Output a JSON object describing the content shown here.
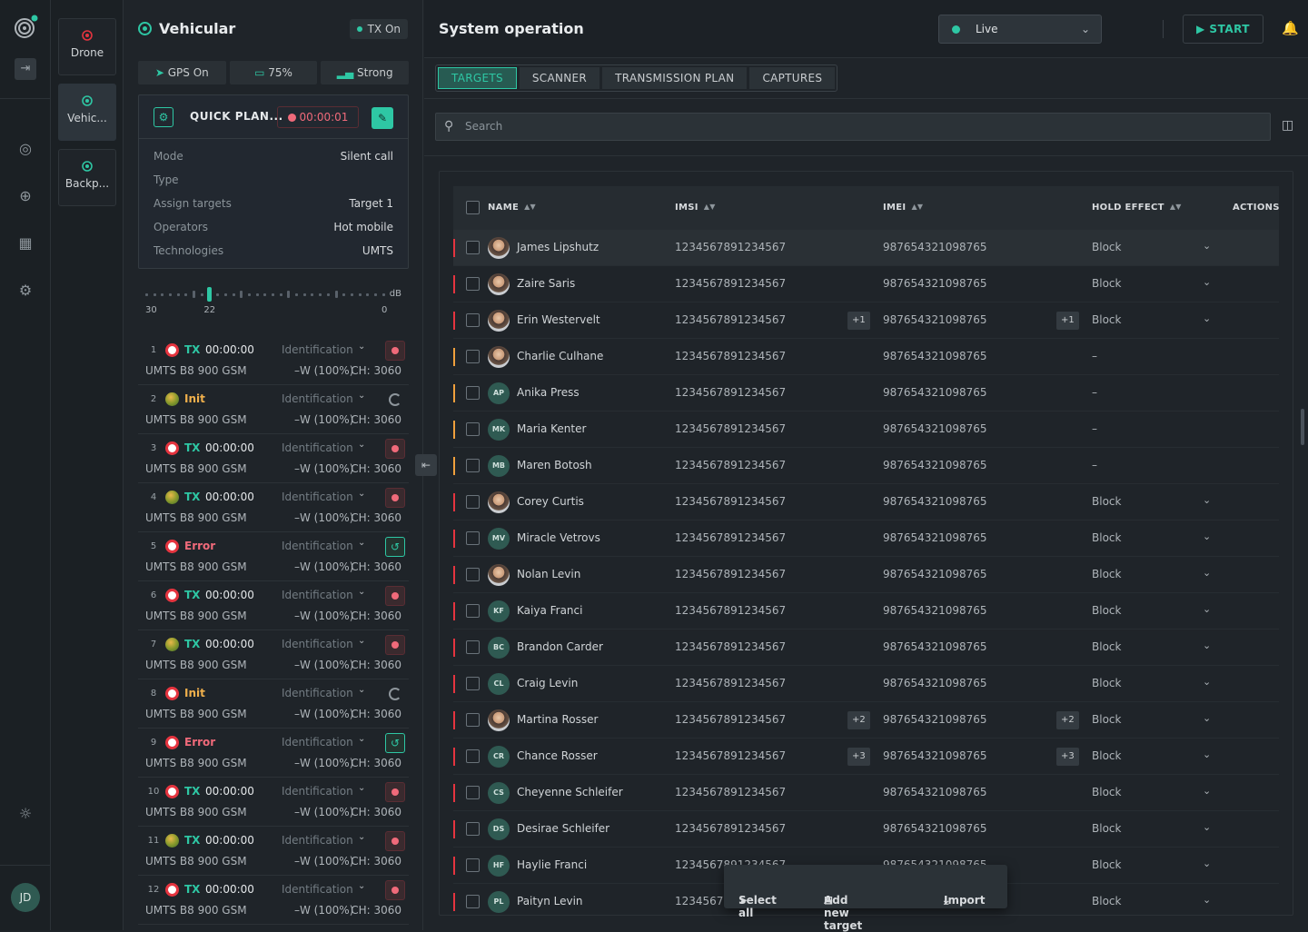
{
  "rail": {
    "avatar": "JD"
  },
  "devices": [
    {
      "label": "Drone",
      "color": "#e5343f"
    },
    {
      "label": "Vehic...",
      "color": "#2ec7a4"
    },
    {
      "label": "Backp...",
      "color": "#2ec7a4"
    }
  ],
  "panel": {
    "title": "Vehicular",
    "tx_status": "TX On",
    "gps": {
      "label": "GPS",
      "value": "On"
    },
    "battery": "75%",
    "signal": "Strong",
    "quick_plan": {
      "name": "QUICK PLAN...",
      "timer": "00:00:01",
      "rows": [
        {
          "label": "Mode",
          "value": "Silent call"
        },
        {
          "label": "Type",
          "value": ""
        },
        {
          "label": "Assign targets",
          "value": "Target 1"
        },
        {
          "label": "Operators",
          "value": "Hot mobile"
        },
        {
          "label": "Technologies",
          "value": "UMTS"
        }
      ]
    },
    "slider": {
      "min_label": "30",
      "current_label": "22",
      "max_label": "0",
      "unit": "dB",
      "value": 22
    },
    "items": [
      {
        "n": "1",
        "icon": "red",
        "status": "TX",
        "cls": "tx",
        "time": "00:00:00",
        "action": "stop"
      },
      {
        "n": "2",
        "icon": "green",
        "status": "Init",
        "cls": "init",
        "time": "",
        "action": "spin"
      },
      {
        "n": "3",
        "icon": "red",
        "status": "TX",
        "cls": "tx",
        "time": "00:00:00",
        "action": "stop"
      },
      {
        "n": "4",
        "icon": "green",
        "status": "TX",
        "cls": "tx",
        "time": "00:00:00",
        "action": "stop"
      },
      {
        "n": "5",
        "icon": "red",
        "status": "Error",
        "cls": "error",
        "time": "",
        "action": "retry"
      },
      {
        "n": "6",
        "icon": "red",
        "status": "TX",
        "cls": "tx",
        "time": "00:00:00",
        "action": "stop"
      },
      {
        "n": "7",
        "icon": "green",
        "status": "TX",
        "cls": "tx",
        "time": "00:00:00",
        "action": "stop"
      },
      {
        "n": "8",
        "icon": "red",
        "status": "Init",
        "cls": "init",
        "time": "",
        "action": "spin"
      },
      {
        "n": "9",
        "icon": "red",
        "status": "Error",
        "cls": "error",
        "time": "",
        "action": "retry"
      },
      {
        "n": "10",
        "icon": "red",
        "status": "TX",
        "cls": "tx",
        "time": "00:00:00",
        "action": "stop"
      },
      {
        "n": "11",
        "icon": "green",
        "status": "TX",
        "cls": "tx",
        "time": "00:00:00",
        "action": "stop"
      },
      {
        "n": "12",
        "icon": "red",
        "status": "TX",
        "cls": "tx",
        "time": "00:00:00",
        "action": "stop"
      }
    ],
    "item_common": {
      "mode": "Identification",
      "band": "UMTS B8 900 GSM",
      "power": "–W (100%)",
      "channel": "CH: 3060"
    }
  },
  "main": {
    "title": "System operation",
    "live": "Live",
    "start": "START",
    "tabs": [
      "TARGETS",
      "SCANNER",
      "TRANSMISSION PLAN",
      "CAPTURES"
    ],
    "search_placeholder": "Search",
    "columns": {
      "name": "NAME",
      "imsi": "IMSI",
      "imei": "IMEI",
      "hold": "HOLD EFFECT",
      "actions": "ACTIONS"
    },
    "rows": [
      {
        "name": "James Lipshutz",
        "initials": "",
        "photo": true,
        "bar": "red",
        "imsi": "1234567891234567",
        "imei": "987654321098765",
        "plus": "",
        "hold": "Block",
        "chev": true,
        "hl": true
      },
      {
        "name": "Zaire Saris",
        "initials": "",
        "photo": true,
        "bar": "red",
        "imsi": "1234567891234567",
        "imei": "987654321098765",
        "plus": "",
        "hold": "Block",
        "chev": true
      },
      {
        "name": "Erin Westervelt",
        "initials": "",
        "photo": true,
        "bar": "red",
        "imsi": "1234567891234567",
        "imei": "987654321098765",
        "plus": "+1",
        "hold": "Block",
        "chev": true
      },
      {
        "name": "Charlie Culhane",
        "initials": "",
        "photo": true,
        "bar": "orange",
        "imsi": "1234567891234567",
        "imei": "987654321098765",
        "plus": "",
        "hold": "–",
        "chev": false
      },
      {
        "name": "Anika Press",
        "initials": "AP",
        "photo": false,
        "bar": "orange",
        "imsi": "1234567891234567",
        "imei": "987654321098765",
        "plus": "",
        "hold": "–",
        "chev": false
      },
      {
        "name": "Maria Kenter",
        "initials": "MK",
        "photo": false,
        "bar": "orange",
        "imsi": "1234567891234567",
        "imei": "987654321098765",
        "plus": "",
        "hold": "–",
        "chev": false
      },
      {
        "name": "Maren Botosh",
        "initials": "MB",
        "photo": false,
        "bar": "orange",
        "imsi": "1234567891234567",
        "imei": "987654321098765",
        "plus": "",
        "hold": "–",
        "chev": false
      },
      {
        "name": "Corey Curtis",
        "initials": "",
        "photo": true,
        "bar": "red",
        "imsi": "1234567891234567",
        "imei": "987654321098765",
        "plus": "",
        "hold": "Block",
        "chev": true
      },
      {
        "name": "Miracle Vetrovs",
        "initials": "MV",
        "photo": false,
        "bar": "red",
        "imsi": "1234567891234567",
        "imei": "987654321098765",
        "plus": "",
        "hold": "Block",
        "chev": true
      },
      {
        "name": "Nolan Levin",
        "initials": "",
        "photo": true,
        "bar": "red",
        "imsi": "1234567891234567",
        "imei": "987654321098765",
        "plus": "",
        "hold": "Block",
        "chev": true
      },
      {
        "name": "Kaiya Franci",
        "initials": "KF",
        "photo": false,
        "bar": "red",
        "imsi": "1234567891234567",
        "imei": "987654321098765",
        "plus": "",
        "hold": "Block",
        "chev": true
      },
      {
        "name": "Brandon Carder",
        "initials": "BC",
        "photo": false,
        "bar": "red",
        "imsi": "1234567891234567",
        "imei": "987654321098765",
        "plus": "",
        "hold": "Block",
        "chev": true
      },
      {
        "name": "Craig Levin",
        "initials": "CL",
        "photo": false,
        "bar": "red",
        "imsi": "1234567891234567",
        "imei": "987654321098765",
        "plus": "",
        "hold": "Block",
        "chev": true
      },
      {
        "name": "Martina Rosser",
        "initials": "",
        "photo": true,
        "bar": "red",
        "imsi": "1234567891234567",
        "imei": "987654321098765",
        "plus": "+2",
        "hold": "Block",
        "chev": true
      },
      {
        "name": "Chance Rosser",
        "initials": "CR",
        "photo": false,
        "bar": "red",
        "imsi": "1234567891234567",
        "imei": "987654321098765",
        "plus": "+3",
        "hold": "Block",
        "chev": true
      },
      {
        "name": "Cheyenne Schleifer",
        "initials": "CS",
        "photo": false,
        "bar": "red",
        "imsi": "1234567891234567",
        "imei": "987654321098765",
        "plus": "",
        "hold": "Block",
        "chev": true
      },
      {
        "name": "Desirae Schleifer",
        "initials": "DS",
        "photo": false,
        "bar": "red",
        "imsi": "1234567891234567",
        "imei": "987654321098765",
        "plus": "",
        "hold": "Block",
        "chev": true
      },
      {
        "name": "Haylie Franci",
        "initials": "HF",
        "photo": false,
        "bar": "red",
        "imsi": "1234567891234567",
        "imei": "987654321098765",
        "plus": "",
        "hold": "Block",
        "chev": true
      },
      {
        "name": "Paityn Levin",
        "initials": "PL",
        "photo": false,
        "bar": "red",
        "imsi": "1234567891234567",
        "imei": "987654321098765",
        "plus": "",
        "hold": "Block",
        "chev": true
      }
    ],
    "bulk": {
      "select_all": "Select all",
      "add_new": "Add new target",
      "import": "Import"
    }
  }
}
